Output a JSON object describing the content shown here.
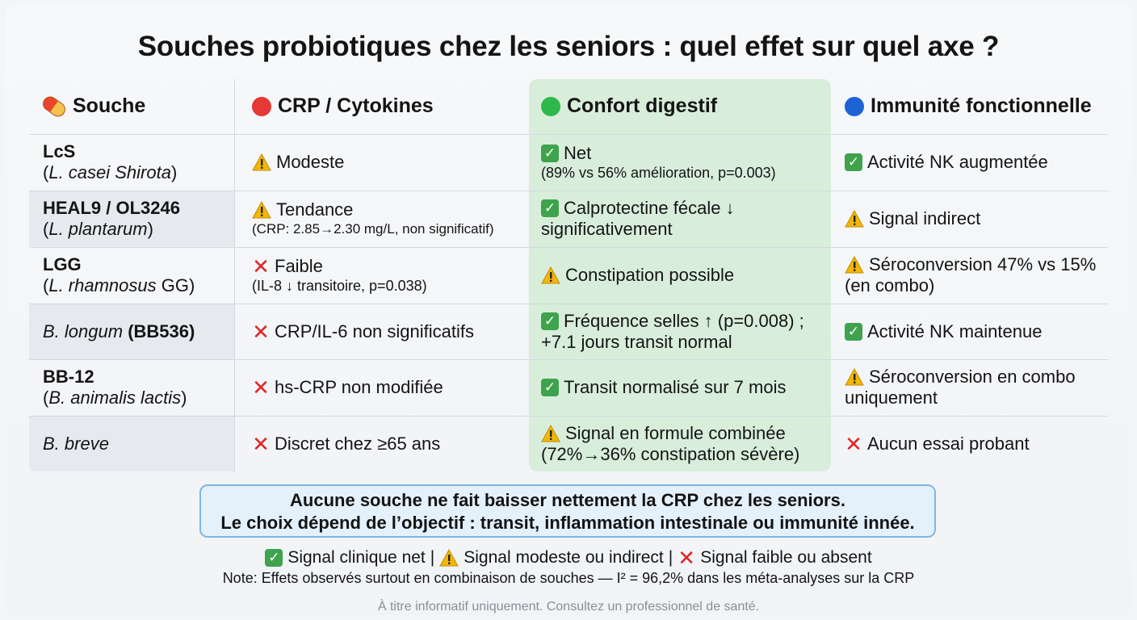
{
  "title": "Souches probiotiques chez les seniors : quel effet sur quel axe ?",
  "headers": {
    "strain": "Souche",
    "crp": "CRP / Cytokines",
    "digestive": "Confort digestif",
    "immunity": "Immunité fonctionnelle"
  },
  "rows": [
    {
      "strain_bold": "LcS",
      "strain_sub": "(L. casei Shirota)",
      "crp": {
        "status": "warn",
        "text": "Modeste",
        "sub": ""
      },
      "digestive": {
        "status": "check",
        "text": "Net",
        "sub": "(89% vs 56% amélioration, p=0.003)"
      },
      "immunity": {
        "status": "check",
        "text": "Activité NK augmentée",
        "text2": ""
      }
    },
    {
      "strain_bold": "HEAL9 / OL3246",
      "strain_sub": "(L. plantarum)",
      "crp": {
        "status": "warn",
        "text": "Tendance",
        "sub": "(CRP: 2.85→2.30 mg/L, non significatif)"
      },
      "digestive": {
        "status": "check",
        "text": "Calprotectine fécale ↓",
        "text2": "significativement"
      },
      "immunity": {
        "status": "warn",
        "text": "Signal indirect",
        "text2": ""
      }
    },
    {
      "strain_bold": "LGG",
      "strain_sub": "(L. rhamnosus GG)",
      "crp": {
        "status": "cross",
        "text": "Faible",
        "sub": "(IL-8 ↓ transitoire, p=0.038)"
      },
      "digestive": {
        "status": "warn",
        "text": "Constipation possible",
        "text2": ""
      },
      "immunity": {
        "status": "warn",
        "text": "Séroconversion 47% vs 15%",
        "text2": "(en combo)"
      }
    },
    {
      "strain_italic": "B. longum",
      "strain_bold": "(BB536)",
      "crp": {
        "status": "cross",
        "text": "CRP/IL-6 non significatifs",
        "sub": ""
      },
      "digestive": {
        "status": "check",
        "text": "Fréquence selles ↑ (p=0.008) ;",
        "text2": "+7.1 jours transit normal"
      },
      "immunity": {
        "status": "check",
        "text": "Activité NK maintenue",
        "text2": ""
      }
    },
    {
      "strain_bold": "BB-12",
      "strain_sub": "(B. animalis lactis)",
      "crp": {
        "status": "cross",
        "text": "hs-CRP non modifiée",
        "sub": ""
      },
      "digestive": {
        "status": "check",
        "text": "Transit normalisé sur 7 mois",
        "text2": ""
      },
      "immunity": {
        "status": "warn",
        "text": "Séroconversion en combo",
        "text2": "uniquement"
      }
    },
    {
      "strain_italic": "B. breve",
      "crp": {
        "status": "cross",
        "text": "Discret chez ≥65 ans",
        "sub": ""
      },
      "digestive": {
        "status": "warn",
        "text": "Signal en formule combinée",
        "text2": "(72%→36% constipation sévère)"
      },
      "immunity": {
        "status": "cross",
        "text": "Aucun essai probant",
        "text2": ""
      }
    }
  ],
  "callout": {
    "line1": "Aucune souche ne fait baisser nettement la CRP chez les seniors.",
    "line2": "Le choix dépend de l’objectif : transit, inflammation intestinale ou immunité innée."
  },
  "legend": {
    "check": "Signal clinique net",
    "sep": "|",
    "warn": "Signal modeste ou indirect",
    "cross": "Signal faible ou absent"
  },
  "note": "Note: Effets observés surtout en combinaison de souches — I² = 96,2% dans les méta-analyses sur la CRP",
  "disclaimer": "À titre informatif uniquement. Consultez un professionnel de santé.",
  "colors": {
    "check": "#3fa34d",
    "warn": "#f2b705",
    "cross": "#e02424",
    "red_dot": "#e53935",
    "green_dot": "#2eb84b",
    "blue_dot": "#1e63d6"
  }
}
